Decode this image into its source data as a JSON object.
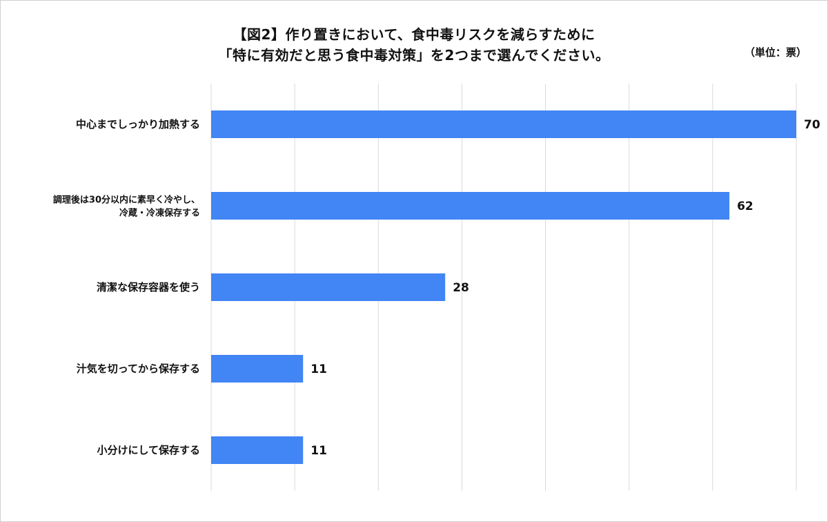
{
  "chart_data": {
    "type": "bar",
    "orientation": "horizontal",
    "title_lines": [
      "【図2】作り置きにおいて、食中毒リスクを減らすために",
      "「特に有効だと思う食中毒対策」を2つまで選んでください。"
    ],
    "unit": "（単位：票）",
    "categories": [
      [
        "中心までしっかり加熱する"
      ],
      [
        "調理後は30分以内に素早く冷やし、",
        "冷蔵・冷凍保存する"
      ],
      [
        "清潔な保存容器を使う"
      ],
      [
        "汁気を切ってから保存する"
      ],
      [
        "小分けにして保存する"
      ]
    ],
    "values": [
      70,
      62,
      28,
      11,
      11
    ],
    "xlim": [
      0,
      70
    ],
    "grid": true,
    "bar_color": "#4285F4",
    "grid_color": "#d9d9d9"
  }
}
